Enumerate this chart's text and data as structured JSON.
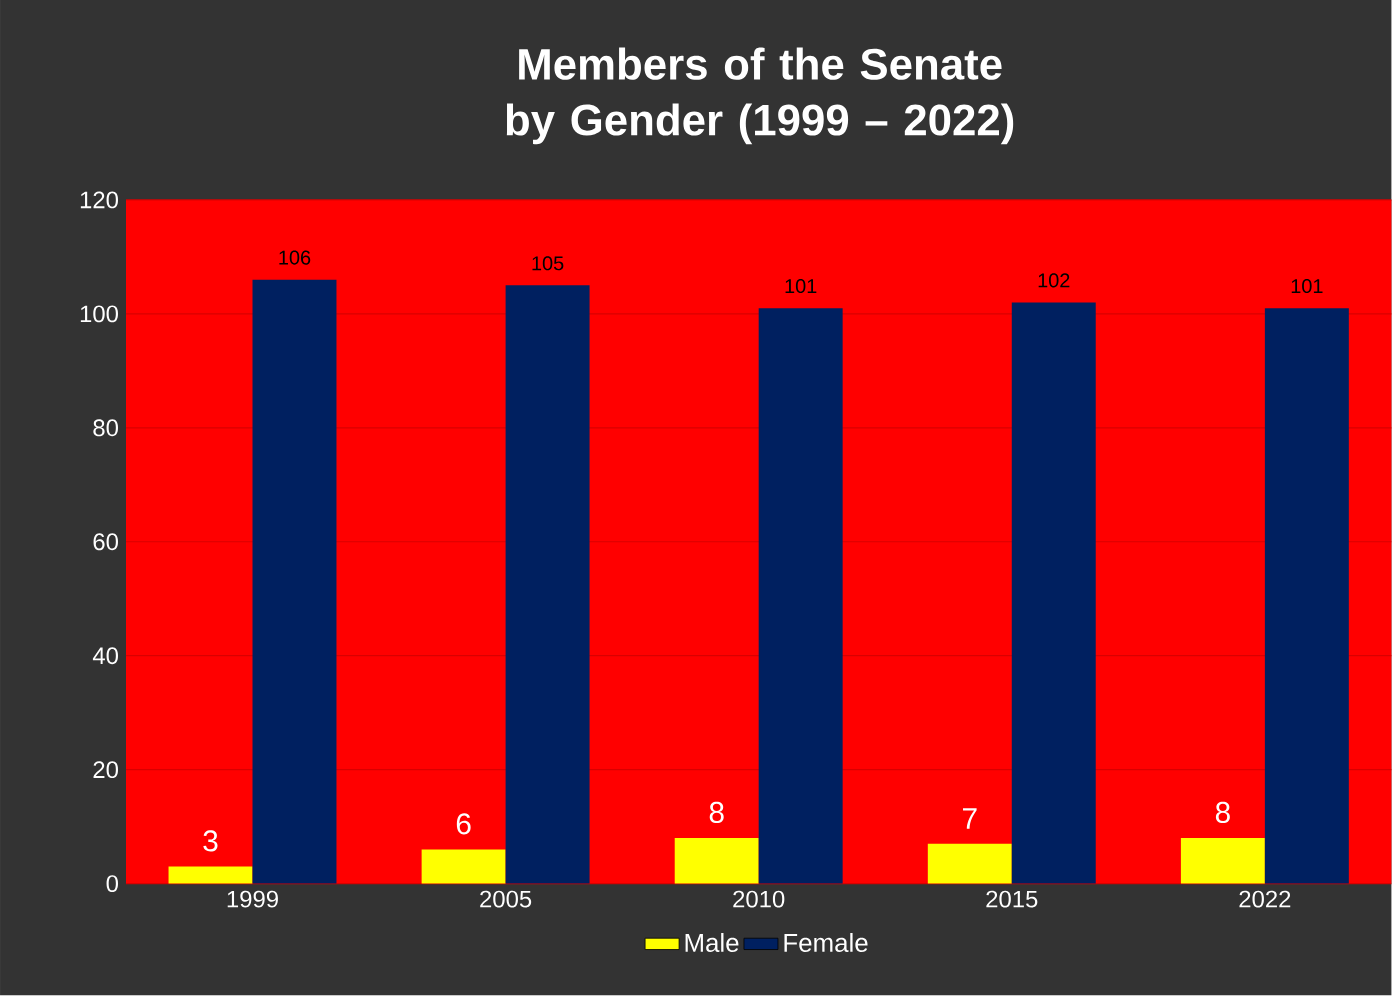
{
  "chart_data": {
    "type": "bar",
    "title": "Members of the Senate by Gender (1999 – 2022)",
    "categories": [
      "1999",
      "2005",
      "2010",
      "2015",
      "2022"
    ],
    "series": [
      {
        "name": "Male",
        "color": "#ffff00",
        "values": [
          3,
          6,
          8,
          7,
          8
        ]
      },
      {
        "name": "Female",
        "color": "#002060",
        "values": [
          106,
          105,
          101,
          102,
          101
        ]
      }
    ],
    "ylim": [
      0,
      120
    ],
    "yticks": [
      0,
      20,
      40,
      60,
      80,
      100,
      120
    ],
    "grid": "y",
    "legend": "bottom",
    "data_labels": true
  }
}
